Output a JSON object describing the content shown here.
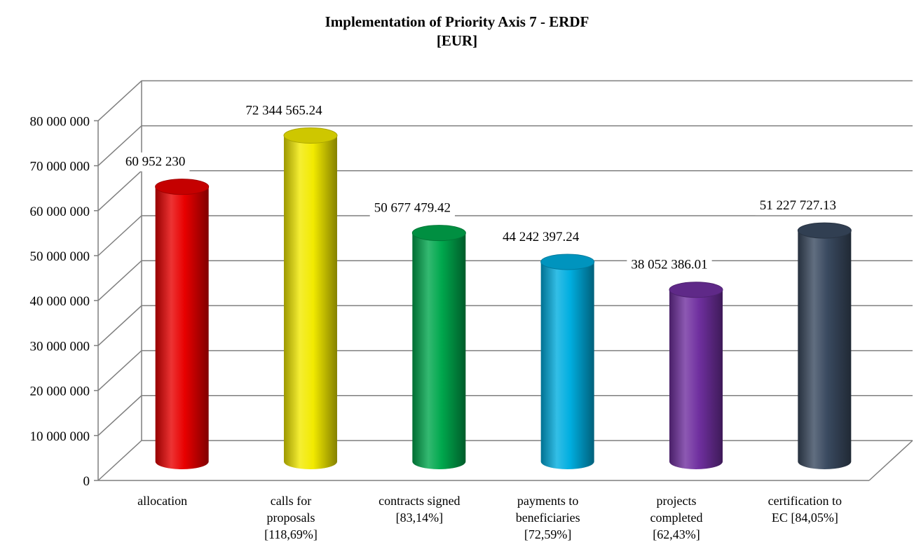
{
  "chart_data": {
    "type": "bar",
    "title": "Implementation of Priority Axis 7 - ERDF",
    "subtitle": "[EUR]",
    "xlabel": "",
    "ylabel": "",
    "ylim": [
      0,
      80000000
    ],
    "yticks": [
      "0",
      "10 000 000",
      "20 000 000",
      "30 000 000",
      "40 000 000",
      "50 000 000",
      "60 000 000",
      "70 000 000",
      "80 000 000"
    ],
    "grid": true,
    "legend": "none",
    "categories": [
      [
        "allocation"
      ],
      [
        "calls for",
        "proposals",
        "[118,69%]"
      ],
      [
        "contracts signed",
        "[83,14%]"
      ],
      [
        "payments to",
        "beneficiaries",
        "[72,59%]"
      ],
      [
        "projects",
        "completed",
        "[62,43%]"
      ],
      [
        "certification to",
        "EC [84,05%]"
      ]
    ],
    "values": [
      60952230,
      72344565.24,
      50677479.42,
      44242397.24,
      38052386.01,
      51227727.13
    ],
    "data_labels": [
      "60 952 230",
      "72 344 565.24",
      "50 677 479.42",
      "44 242 397.24",
      "38 052 386.01",
      "51 227 727.13"
    ],
    "colors": [
      "#e80000",
      "#f2ea00",
      "#00a84d",
      "#00aee0",
      "#7030a0",
      "#3a4a60"
    ]
  }
}
